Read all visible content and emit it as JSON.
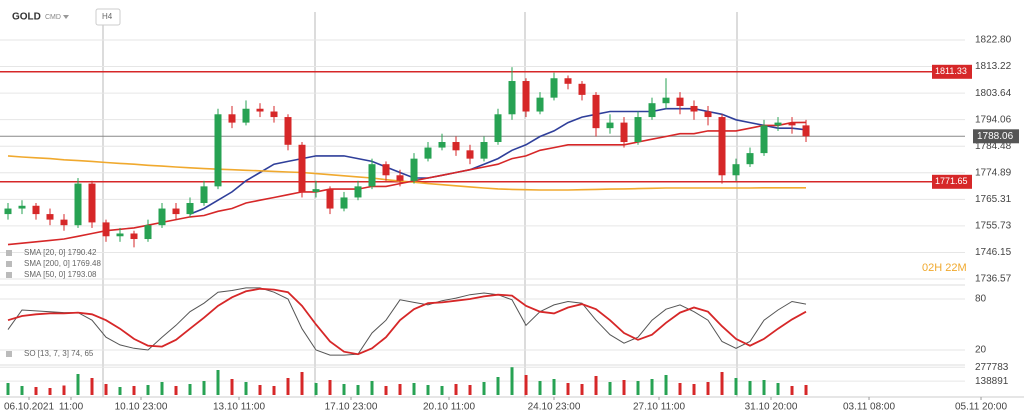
{
  "chart_data": {
    "type": "candlestick",
    "title": "GOLD",
    "subtitle": "CMD",
    "timeframe": "H4",
    "countdown": "02H 22M",
    "colors": {
      "up": "#27a253",
      "down": "#d62728",
      "last": "#555555"
    },
    "candles": [
      [
        1760,
        1764,
        1758,
        1762
      ],
      [
        1762,
        1765,
        1760,
        1763
      ],
      [
        1763,
        1764,
        1758,
        1760
      ],
      [
        1760,
        1762,
        1756,
        1758
      ],
      [
        1758,
        1760,
        1754,
        1756
      ],
      [
        1756,
        1773,
        1755,
        1771
      ],
      [
        1771,
        1772,
        1755,
        1757
      ],
      [
        1757,
        1758,
        1750,
        1752
      ],
      [
        1752,
        1755,
        1750,
        1753
      ],
      [
        1753,
        1754,
        1748,
        1751
      ],
      [
        1751,
        1758,
        1750,
        1756
      ],
      [
        1756,
        1764,
        1755,
        1762
      ],
      [
        1762,
        1764,
        1758,
        1760
      ],
      [
        1760,
        1766,
        1759,
        1764
      ],
      [
        1764,
        1772,
        1763,
        1770
      ],
      [
        1770,
        1798,
        1769,
        1796
      ],
      [
        1796,
        1799,
        1791,
        1793
      ],
      [
        1793,
        1801,
        1792,
        1798
      ],
      [
        1798,
        1800,
        1795,
        1797
      ],
      [
        1797,
        1799,
        1793,
        1795
      ],
      [
        1795,
        1796,
        1783,
        1785
      ],
      [
        1785,
        1786,
        1766,
        1768
      ],
      [
        1768,
        1772,
        1766,
        1769
      ],
      [
        1769,
        1770,
        1760,
        1762
      ],
      [
        1762,
        1768,
        1761,
        1766
      ],
      [
        1766,
        1772,
        1765,
        1770
      ],
      [
        1770,
        1780,
        1769,
        1778
      ],
      [
        1778,
        1779,
        1772,
        1774
      ],
      [
        1774,
        1776,
        1770,
        1772
      ],
      [
        1772,
        1782,
        1771,
        1780
      ],
      [
        1780,
        1786,
        1779,
        1784
      ],
      [
        1784,
        1789,
        1783,
        1786
      ],
      [
        1786,
        1788,
        1781,
        1783
      ],
      [
        1783,
        1785,
        1778,
        1780
      ],
      [
        1780,
        1788,
        1779,
        1786
      ],
      [
        1786,
        1798,
        1785,
        1796
      ],
      [
        1796,
        1813,
        1794,
        1808
      ],
      [
        1808,
        1809,
        1795,
        1797
      ],
      [
        1797,
        1804,
        1796,
        1802
      ],
      [
        1802,
        1811,
        1801,
        1809
      ],
      [
        1809,
        1810,
        1805,
        1807
      ],
      [
        1807,
        1808,
        1801,
        1803
      ],
      [
        1803,
        1804,
        1788,
        1791
      ],
      [
        1791,
        1796,
        1789,
        1793
      ],
      [
        1793,
        1795,
        1784,
        1786
      ],
      [
        1786,
        1797,
        1785,
        1795
      ],
      [
        1795,
        1802,
        1794,
        1800
      ],
      [
        1800,
        1809,
        1798,
        1802
      ],
      [
        1802,
        1804,
        1796,
        1799
      ],
      [
        1799,
        1801,
        1794,
        1797
      ],
      [
        1797,
        1799,
        1792,
        1795
      ],
      [
        1795,
        1796,
        1771,
        1774
      ],
      [
        1774,
        1780,
        1772,
        1778
      ],
      [
        1778,
        1784,
        1777,
        1782
      ],
      [
        1782,
        1794,
        1781,
        1792
      ],
      [
        1792,
        1795,
        1790,
        1793
      ],
      [
        1793,
        1795,
        1789,
        1792
      ],
      [
        1792,
        1794,
        1786,
        1788.06
      ]
    ],
    "xlim": [
      -0.5714,
      71.57
    ],
    "xticks": [
      {
        "value": 1.5,
        "label": "06.10.2021"
      },
      {
        "value": 4.5,
        "label": "11:00"
      },
      {
        "value": 9.5,
        "label": "10.10 23:00"
      },
      {
        "value": 16.5,
        "label": "13.10 11:00"
      },
      {
        "value": 24.5,
        "label": "17.10 23:00"
      },
      {
        "value": 31.5,
        "label": "20.10 11:00"
      },
      {
        "value": 39,
        "label": "24.10 23:00"
      },
      {
        "value": 46.5,
        "label": "27.10 11:00"
      },
      {
        "value": 54.5,
        "label": "31.10 20:00"
      },
      {
        "value": 61.5,
        "label": "03.11 08:00"
      },
      {
        "value": 69.5,
        "label": "05.11 20:00"
      }
    ],
    "ylim": [
      1734.42,
      1833.62
    ],
    "yticks": [
      {
        "value": 1822.8,
        "label": "1822.80"
      },
      1813.22,
      1803.64,
      1794.06,
      1784.48,
      1774.89,
      1765.31,
      1755.73,
      1746.15,
      1736.57
    ],
    "grid": true,
    "last_price": 1788.06,
    "levels": [
      {
        "value": 1811.33,
        "color": "#d62728"
      },
      {
        "value": 1771.65,
        "color": "#d62728"
      }
    ],
    "series": [
      {
        "name": "SMA [20, 0] 1790.42",
        "color": "#2f3f9a",
        "values": [
          null,
          null,
          null,
          null,
          null,
          null,
          null,
          null,
          null,
          null,
          null,
          null,
          null,
          1760,
          1762,
          1765,
          1768,
          1772,
          1775,
          1778,
          1779,
          1780,
          1781,
          1781,
          1781,
          1780,
          1779,
          1777,
          1775,
          1773,
          1773,
          1774,
          1775,
          1776,
          1778,
          1780,
          1783,
          1785,
          1788,
          1790,
          1793,
          1795,
          1796,
          1797,
          1797,
          1797,
          1797,
          1798,
          1798,
          1798,
          1797,
          1796,
          1794,
          1793,
          1792,
          1791,
          1791,
          1790.42
        ]
      },
      {
        "name": "SMA [200, 0] 1769.48",
        "color": "#f0a92e",
        "values": [
          1781,
          1780.6,
          1780.3,
          1780,
          1779.6,
          1779.3,
          1779,
          1778.6,
          1778.3,
          1778,
          1777.6,
          1777.3,
          1777,
          1776.7,
          1776.4,
          1776.2,
          1776,
          1775.8,
          1775.6,
          1775.4,
          1775.2,
          1775,
          1774.6,
          1774.2,
          1773.8,
          1773.4,
          1773,
          1772.4,
          1771.9,
          1771.5,
          1771,
          1770.6,
          1770.2,
          1769.8,
          1769.4,
          1769.1,
          1768.9,
          1768.8,
          1768.7,
          1768.7,
          1768.7,
          1768.8,
          1768.9,
          1769,
          1769.1,
          1769.2,
          1769.3,
          1769.4,
          1769.4,
          1769.4,
          1769.4,
          1769.4,
          1769.4,
          1769.4,
          1769.5,
          1769.5,
          1769.5,
          1769.48
        ]
      },
      {
        "name": "SMA [50, 0] 1793.08",
        "color": "#d62728",
        "values": [
          1749,
          1749.5,
          1750,
          1750.5,
          1751,
          1752,
          1753,
          1754,
          1754.5,
          1755,
          1756,
          1757,
          1758,
          1759,
          1759.5,
          1761,
          1762,
          1764,
          1765,
          1766,
          1767,
          1768,
          1768,
          1769,
          1769,
          1769,
          1770,
          1770,
          1771,
          1772,
          1773,
          1774,
          1775,
          1776,
          1777,
          1778,
          1780,
          1781,
          1783,
          1784,
          1785,
          1785,
          1785,
          1785,
          1785,
          1786,
          1787,
          1788,
          1789,
          1789,
          1790,
          1790,
          1790,
          1791,
          1792,
          1792,
          1793,
          1793.08
        ]
      }
    ],
    "oscillator": {
      "name": "SO [13, 7, 3] 74, 65",
      "ylim": [
        2.35,
        96.47
      ],
      "yticks": [
        20,
        80
      ],
      "series": [
        {
          "color": "#555555",
          "values": [
            44,
            67,
            66,
            65,
            64,
            64,
            55,
            35,
            26,
            22,
            20,
            35,
            49,
            65,
            75,
            88,
            90,
            93,
            93,
            88,
            80,
            45,
            20,
            14,
            14,
            15,
            40,
            55,
            79,
            76,
            73,
            78,
            81,
            85,
            87,
            85,
            79,
            49,
            65,
            73,
            77,
            75,
            55,
            38,
            28,
            35,
            55,
            68,
            73,
            65,
            55,
            30,
            22,
            30,
            55,
            67,
            77,
            74
          ]
        },
        {
          "color": "#d62728",
          "values": [
            55,
            60,
            62,
            63,
            63,
            64,
            62,
            55,
            45,
            33,
            25,
            24,
            32,
            45,
            58,
            72,
            82,
            89,
            92,
            91,
            88,
            72,
            50,
            30,
            18,
            15,
            22,
            35,
            55,
            68,
            75,
            76,
            78,
            80,
            83,
            85,
            84,
            72,
            65,
            63,
            70,
            74,
            68,
            55,
            40,
            32,
            38,
            52,
            64,
            70,
            65,
            48,
            33,
            25,
            33,
            45,
            56,
            65
          ]
        }
      ]
    },
    "volume": {
      "ylim": [
        0,
        300000
      ],
      "yticks": [
        138891,
        277783
      ],
      "values": [
        120000,
        90000,
        80000,
        70000,
        95000,
        210000,
        170000,
        110000,
        80000,
        90000,
        100000,
        130000,
        90000,
        110000,
        140000,
        250000,
        160000,
        130000,
        100000,
        90000,
        170000,
        230000,
        120000,
        150000,
        110000,
        100000,
        140000,
        90000,
        110000,
        120000,
        100000,
        90000,
        110000,
        100000,
        130000,
        180000,
        277783,
        200000,
        140000,
        160000,
        120000,
        110000,
        190000,
        130000,
        150000,
        140000,
        160000,
        200000,
        120000,
        110000,
        130000,
        230000,
        170000,
        140000,
        150000,
        120000,
        90000,
        100000
      ]
    }
  }
}
